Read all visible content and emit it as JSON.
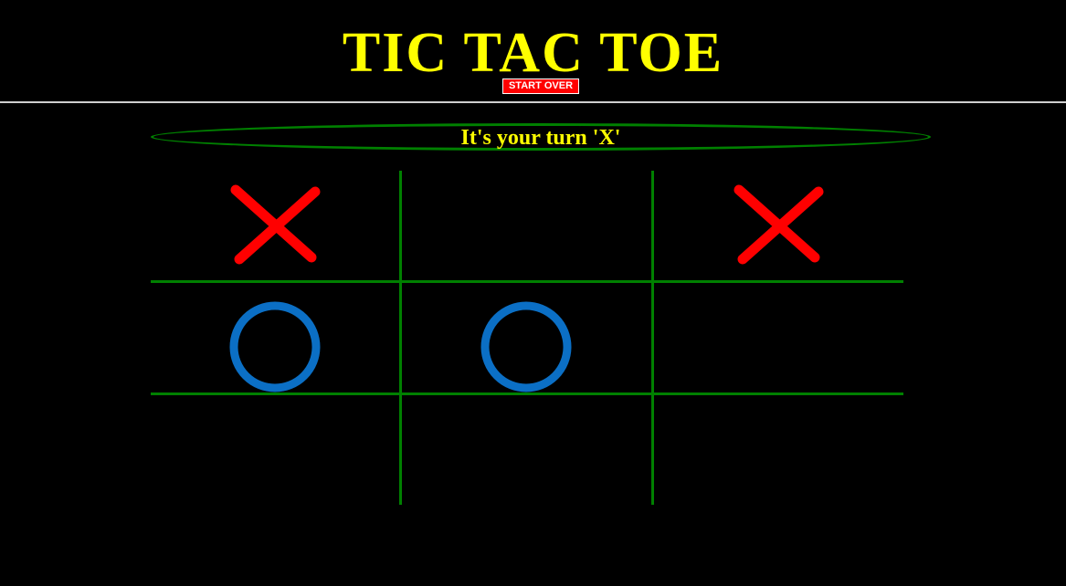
{
  "header": {
    "title": "TIC TAC TOE",
    "start_over_label": "START OVER"
  },
  "status": {
    "message": "It's your turn 'X'"
  },
  "board": {
    "cells": [
      "X",
      "",
      "X",
      "O",
      "O",
      "",
      "",
      "",
      ""
    ]
  },
  "colors": {
    "background": "#000000",
    "title": "#ffff00",
    "status_text": "#ffff00",
    "grid": "#008000",
    "status_border": "#008000",
    "x_mark": "#ff0000",
    "o_mark": "#0b6fc5",
    "button_bg": "#ff0000",
    "button_text": "#ffffff"
  },
  "icons": {
    "x_mark": "x-mark-icon",
    "o_mark": "o-mark-icon"
  }
}
